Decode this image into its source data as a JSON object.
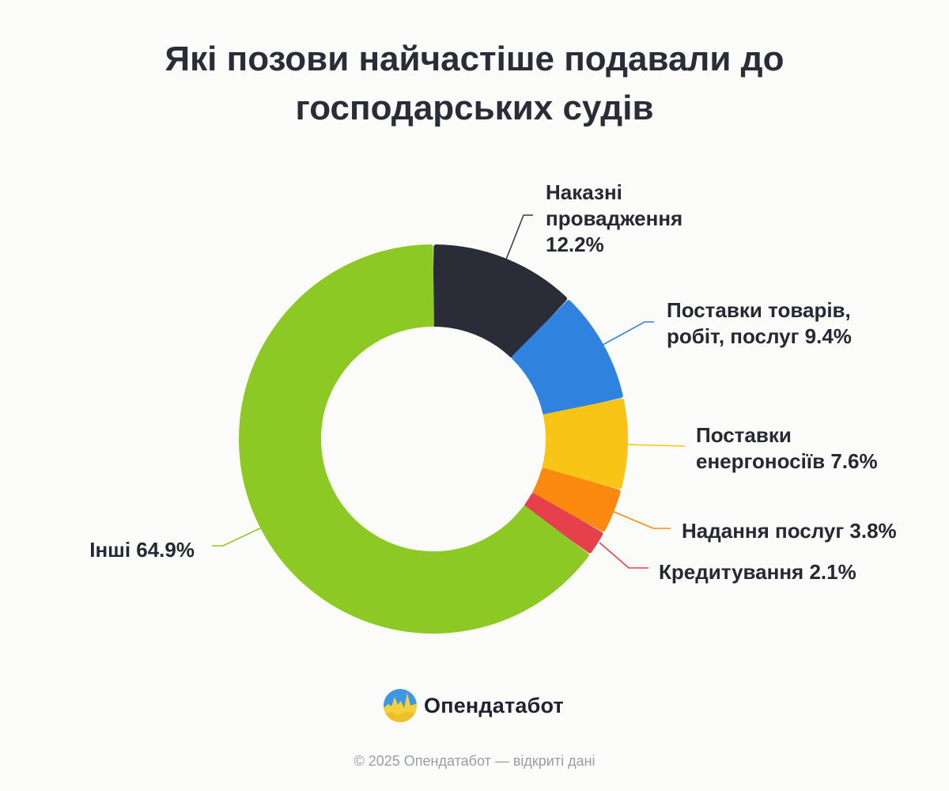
{
  "title_lines": [
    "Які позови найчастіше подавали до",
    "господарських судів"
  ],
  "chart_data": {
    "type": "pie",
    "variant": "donut",
    "title": "Які позови найчастіше подавали до господарських судів",
    "slices": [
      {
        "label_lines": [
          "Наказні",
          "провадження",
          "12.2%"
        ],
        "name": "Наказні провадження",
        "value": 12.2,
        "color": "#2a2d38"
      },
      {
        "label_lines": [
          "Поставки товарів,",
          "робіт, послуг 9.4%"
        ],
        "name": "Поставки товарів, робіт, послуг",
        "value": 9.4,
        "color": "#2f82dd"
      },
      {
        "label_lines": [
          "Поставки",
          "енергоносіїв 7.6%"
        ],
        "name": "Поставки енергоносіїв",
        "value": 7.6,
        "color": "#f8c516"
      },
      {
        "label_lines": [
          "Надання послуг 3.8%"
        ],
        "name": "Надання послуг",
        "value": 3.8,
        "color": "#fb890f"
      },
      {
        "label_lines": [
          "Кредитування 2.1%"
        ],
        "name": "Кредитування",
        "value": 2.1,
        "color": "#e5404b"
      },
      {
        "label_lines": [
          "Інші 64.9%"
        ],
        "name": "Інші",
        "value": 64.9,
        "color": "#8dc925"
      }
    ]
  },
  "brand": {
    "name": "Опендатабот"
  },
  "footer": {
    "copyright": "© 2025 Опендатабот — відкриті дані"
  }
}
